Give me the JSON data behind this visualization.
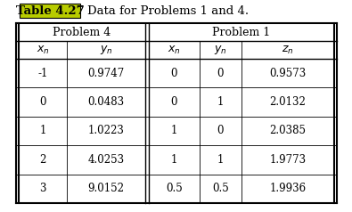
{
  "title_label": "Table 4.27",
  "title_highlight_color": "#b8cc00",
  "title_text": "Data for Problems 1 and 4.",
  "title_fontsize": 9.5,
  "prob4_header": "Problem 4",
  "prob1_header": "Problem 1",
  "prob4_xn": [
    "-1",
    "0",
    "1",
    "2",
    "3"
  ],
  "prob4_yn": [
    "0.9747",
    "0.0483",
    "1.0223",
    "4.0253",
    "9.0152"
  ],
  "prob1_xn": [
    "0",
    "0",
    "1",
    "1",
    "0.5"
  ],
  "prob1_yn": [
    "0",
    "1",
    "0",
    "1",
    "0.5"
  ],
  "prob1_zn": [
    "0.9573",
    "2.0132",
    "2.0385",
    "1.9773",
    "1.9936"
  ],
  "bg_color": "#ffffff",
  "table_font_size": 8.5,
  "header_font_size": 9.0
}
